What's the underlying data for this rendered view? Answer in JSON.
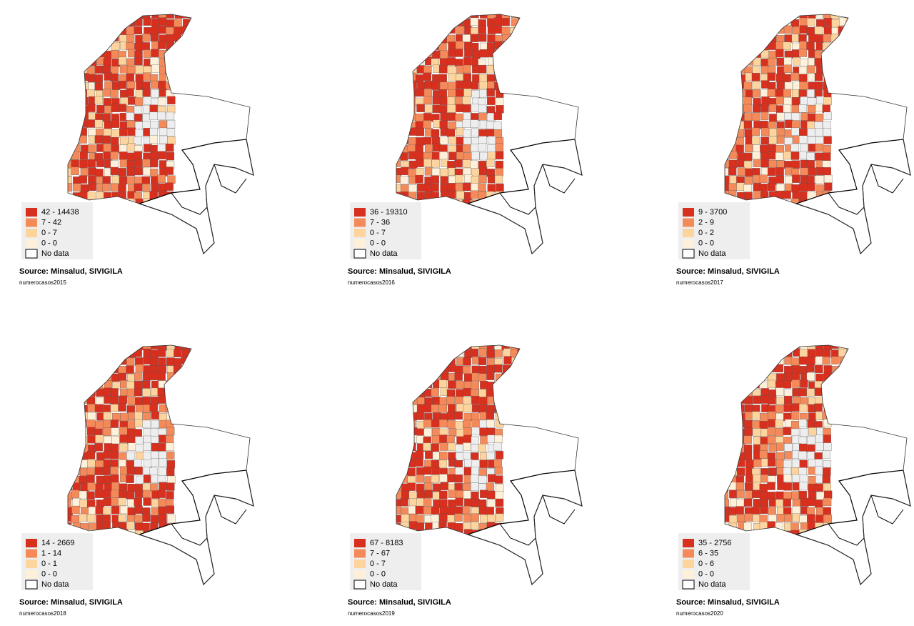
{
  "legend_colors": [
    "#d7301f",
    "#f4895a",
    "#fdd49e",
    "#fef0d9",
    "#ffffff"
  ],
  "panels": [
    {
      "legend": [
        "42 - 14438",
        "7 - 42",
        "0 - 7",
        "0 - 0",
        "No data"
      ],
      "source": "Source: Minsalud, SIVIGILA",
      "caption": "numerocasos2015"
    },
    {
      "legend": [
        "36 - 19310",
        "7 - 36",
        "0 - 7",
        "0 - 0",
        "No data"
      ],
      "source": "Source: Minsalud, SIVIGILA",
      "caption": "numerocasos2016"
    },
    {
      "legend": [
        "9 - 3700",
        "2 - 9",
        "0 - 2",
        "0 - 0",
        "No data"
      ],
      "source": "Source: Minsalud, SIVIGILA",
      "caption": "numerocasos2017"
    },
    {
      "legend": [
        "14 - 2669",
        "1 - 14",
        "0 - 1",
        "0 - 0",
        "No data"
      ],
      "source": "Source: Minsalud, SIVIGILA",
      "caption": "numerocasos2018"
    },
    {
      "legend": [
        "67 - 8183",
        "7 - 67",
        "0 - 7",
        "0 - 0",
        "No data"
      ],
      "source": "Source: Minsalud, SIVIGILA",
      "caption": "numerocasos2019"
    },
    {
      "legend": [
        "35 - 2756",
        "6 - 35",
        "0 - 6",
        "0 - 0",
        "No data"
      ],
      "source": "Source: Minsalud, SIVIGILA",
      "caption": "numerocasos2020"
    }
  ]
}
